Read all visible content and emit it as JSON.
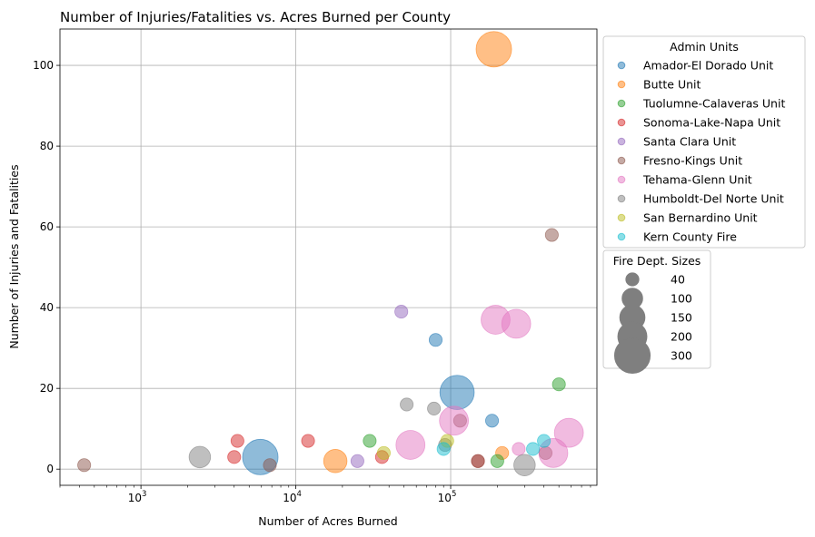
{
  "chart_data": {
    "type": "scatter",
    "title": "Number of Injuries/Fatalities vs. Acres Burned per County",
    "xlabel": "Number of Acres Burned",
    "ylabel": "Number of Injuries and Fatalities",
    "xscale": "log",
    "xlim": [
      300,
      880000
    ],
    "ylim": [
      -4,
      109
    ],
    "x_ticks": [
      {
        "value": 1000,
        "base": "10",
        "exp": "3"
      },
      {
        "value": 10000,
        "base": "10",
        "exp": "4"
      },
      {
        "value": 100000,
        "base": "10",
        "exp": "5"
      }
    ],
    "y_ticks": [
      0,
      20,
      40,
      60,
      80,
      100
    ],
    "grid": true,
    "legend_color_title": "Admin Units",
    "legend_size_title": "Fire Dept. Sizes",
    "legend_placement": "outside right",
    "size_legend": [
      {
        "label": "40",
        "size": 40
      },
      {
        "label": "100",
        "size": 100
      },
      {
        "label": "150",
        "size": 150
      },
      {
        "label": "200",
        "size": 200
      },
      {
        "label": "300",
        "size": 300
      }
    ],
    "series": [
      {
        "name": "Amador-El Dorado Unit",
        "color": "#1f77b4",
        "points": [
          {
            "x": 5900,
            "y": 3,
            "size": 300
          },
          {
            "x": 110000,
            "y": 19,
            "size": 280
          },
          {
            "x": 80000,
            "y": 32,
            "size": 40
          },
          {
            "x": 185000,
            "y": 12,
            "size": 40
          }
        ]
      },
      {
        "name": "Butte Unit",
        "color": "#ff7f0e",
        "points": [
          {
            "x": 190000,
            "y": 104,
            "size": 300
          },
          {
            "x": 18000,
            "y": 2,
            "size": 130
          },
          {
            "x": 215000,
            "y": 4,
            "size": 40
          }
        ]
      },
      {
        "name": "Tuolumne-Calaveras Unit",
        "color": "#2ca02c",
        "points": [
          {
            "x": 30000,
            "y": 7,
            "size": 40
          },
          {
            "x": 500000,
            "y": 21,
            "size": 40
          },
          {
            "x": 200000,
            "y": 2,
            "size": 40
          }
        ]
      },
      {
        "name": "Sonoma-Lake-Napa Unit",
        "color": "#d62728",
        "points": [
          {
            "x": 4200,
            "y": 7,
            "size": 40
          },
          {
            "x": 4000,
            "y": 3,
            "size": 40
          },
          {
            "x": 12000,
            "y": 7,
            "size": 40
          },
          {
            "x": 36000,
            "y": 3,
            "size": 40
          },
          {
            "x": 150000,
            "y": 2,
            "size": 40
          }
        ]
      },
      {
        "name": "Santa Clara Unit",
        "color": "#9467bd",
        "points": [
          {
            "x": 48000,
            "y": 39,
            "size": 40
          },
          {
            "x": 25000,
            "y": 2,
            "size": 40
          }
        ]
      },
      {
        "name": "Fresno-Kings Unit",
        "color": "#8c564b",
        "points": [
          {
            "x": 430,
            "y": 1,
            "size": 40
          },
          {
            "x": 6800,
            "y": 1,
            "size": 40
          },
          {
            "x": 450000,
            "y": 58,
            "size": 40
          },
          {
            "x": 115000,
            "y": 12,
            "size": 40
          },
          {
            "x": 410000,
            "y": 4,
            "size": 40
          },
          {
            "x": 150000,
            "y": 2,
            "size": 40
          }
        ]
      },
      {
        "name": "Tehama-Glenn Unit",
        "color": "#e377c2",
        "points": [
          {
            "x": 195000,
            "y": 37,
            "size": 200
          },
          {
            "x": 265000,
            "y": 36,
            "size": 200
          },
          {
            "x": 105000,
            "y": 12,
            "size": 200
          },
          {
            "x": 55000,
            "y": 6,
            "size": 200
          },
          {
            "x": 580000,
            "y": 9,
            "size": 200
          },
          {
            "x": 460000,
            "y": 4,
            "size": 200
          },
          {
            "x": 275000,
            "y": 5,
            "size": 40
          }
        ]
      },
      {
        "name": "Humboldt-Del Norte Unit",
        "color": "#7f7f7f",
        "points": [
          {
            "x": 2400,
            "y": 3,
            "size": 110
          },
          {
            "x": 52000,
            "y": 16,
            "size": 40
          },
          {
            "x": 78000,
            "y": 15,
            "size": 40
          },
          {
            "x": 92000,
            "y": 6,
            "size": 40
          },
          {
            "x": 300000,
            "y": 1,
            "size": 110
          }
        ]
      },
      {
        "name": "San Bernardino Unit",
        "color": "#bcbd22",
        "points": [
          {
            "x": 37000,
            "y": 4,
            "size": 40
          },
          {
            "x": 95000,
            "y": 7,
            "size": 40
          }
        ]
      },
      {
        "name": "Kern County Fire",
        "color": "#17becf",
        "points": [
          {
            "x": 90000,
            "y": 5,
            "size": 40
          },
          {
            "x": 340000,
            "y": 5,
            "size": 40
          },
          {
            "x": 400000,
            "y": 7,
            "size": 40
          }
        ]
      }
    ]
  }
}
